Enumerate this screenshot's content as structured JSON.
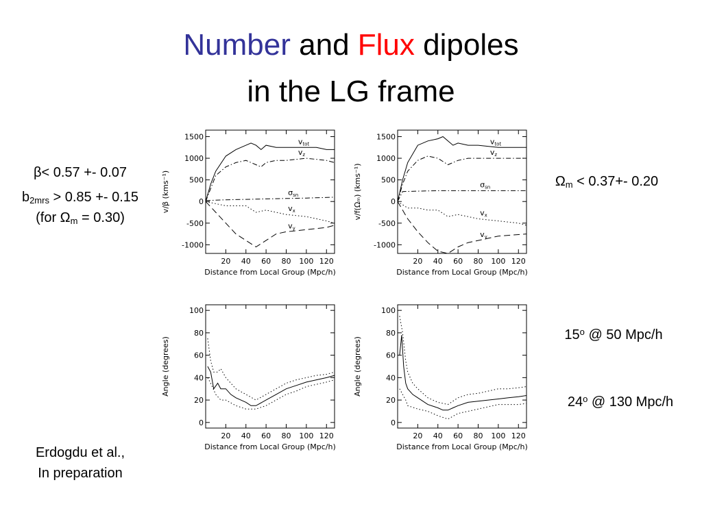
{
  "slide": {
    "title": [
      [
        {
          "t": "Number",
          "color": "#333399"
        },
        {
          "t": " and "
        },
        {
          "t": "Flux",
          "color": "#ff0000"
        },
        {
          "t": " dipoles"
        }
      ],
      [
        {
          "t": "in the LG frame"
        }
      ]
    ],
    "left_note": [
      [
        {
          "t": "β"
        },
        {
          "t": "< 0.57 +- 0.07"
        }
      ],
      [
        {
          "t": "b"
        },
        {
          "t": "2mrs",
          "sub": true
        },
        {
          "t": " > 0.85 +- 0.15"
        }
      ],
      [
        {
          "t": "(for Ω"
        },
        {
          "t": "m",
          "sub": true
        },
        {
          "t": " = 0.30)"
        }
      ]
    ],
    "right_note": [
      {
        "t": "Ω"
      },
      {
        "t": "m",
        "sub": true
      },
      {
        "t": " < 0.37+- 0.20"
      }
    ],
    "angle_notes": [
      [
        {
          "t": "15"
        },
        {
          "t": "o",
          "sup": true
        },
        {
          "t": " @ 50 Mpc/h"
        }
      ],
      [
        {
          "t": "24"
        },
        {
          "t": "o",
          "sup": true
        },
        {
          "t": " @ 130 Mpc/h"
        }
      ]
    ],
    "reference": [
      "Erdogdu et al.,",
      "In preparation"
    ]
  },
  "chart_data": [
    {
      "type": "line",
      "x_label": "Distance from Local Group (Mpc/h)",
      "y_label": "v/β (kms⁻¹)",
      "xlim": [
        0,
        128
      ],
      "xticks": [
        20,
        40,
        60,
        80,
        100,
        120
      ],
      "ylim": [
        -1200,
        1650
      ],
      "yticks": [
        -1000,
        -500,
        0,
        500,
        1000,
        1500
      ],
      "series": [
        {
          "name": "v",
          "name_sub": "tot",
          "color": "#000000",
          "style": "solid",
          "x": [
            0,
            5,
            10,
            20,
            30,
            40,
            45,
            50,
            55,
            60,
            70,
            80,
            90,
            100,
            110,
            120,
            128
          ],
          "values": [
            0,
            400,
            700,
            1050,
            1200,
            1300,
            1350,
            1300,
            1200,
            1300,
            1250,
            1250,
            1250,
            1250,
            1250,
            1200,
            1200
          ]
        },
        {
          "name": "v",
          "name_sub": "z",
          "color": "#000000",
          "style": "dashdot",
          "x": [
            0,
            5,
            10,
            20,
            30,
            40,
            50,
            55,
            60,
            70,
            80,
            100,
            120,
            128
          ],
          "values": [
            0,
            300,
            600,
            800,
            900,
            950,
            850,
            800,
            900,
            950,
            950,
            1000,
            950,
            900
          ]
        },
        {
          "name": "σ",
          "name_sub": "sn",
          "color": "#000000",
          "style": "dashdot",
          "x": [
            0,
            20,
            40,
            60,
            80,
            100,
            128
          ],
          "values": [
            20,
            40,
            50,
            60,
            70,
            80,
            100
          ]
        },
        {
          "name": "v",
          "name_sub": "x",
          "color": "#000000",
          "style": "dotted",
          "x": [
            0,
            10,
            20,
            30,
            40,
            50,
            60,
            70,
            80,
            100,
            120,
            128
          ],
          "values": [
            0,
            -50,
            -100,
            -100,
            -100,
            -250,
            -200,
            -250,
            -300,
            -350,
            -450,
            -500
          ]
        },
        {
          "name": "v",
          "name_sub": "y",
          "color": "#000000",
          "style": "dashed",
          "x": [
            0,
            10,
            20,
            30,
            40,
            50,
            60,
            70,
            80,
            100,
            120,
            128
          ],
          "values": [
            0,
            -250,
            -500,
            -750,
            -900,
            -1050,
            -900,
            -750,
            -700,
            -650,
            -600,
            -550
          ]
        }
      ]
    },
    {
      "type": "line",
      "x_label": "Distance from Local Group (Mpc/h)",
      "y_label": "v/f(Ωₘ) (kms⁻¹)",
      "xlim": [
        0,
        128
      ],
      "xticks": [
        20,
        40,
        60,
        80,
        100,
        120
      ],
      "ylim": [
        -1200,
        1650
      ],
      "yticks": [
        -1000,
        -500,
        0,
        500,
        1000,
        1500
      ],
      "series": [
        {
          "name": "v",
          "name_sub": "tot",
          "color": "#000000",
          "style": "solid",
          "x": [
            0,
            5,
            10,
            20,
            30,
            40,
            45,
            50,
            55,
            60,
            70,
            80,
            100,
            128
          ],
          "values": [
            0,
            500,
            900,
            1300,
            1400,
            1450,
            1500,
            1400,
            1300,
            1350,
            1300,
            1300,
            1250,
            1250
          ]
        },
        {
          "name": "v",
          "name_sub": "z",
          "color": "#000000",
          "style": "dashdot",
          "x": [
            0,
            5,
            10,
            20,
            30,
            40,
            50,
            60,
            70,
            80,
            100,
            128
          ],
          "values": [
            0,
            400,
            700,
            950,
            1050,
            1000,
            850,
            950,
            1000,
            1000,
            1000,
            1000
          ]
        },
        {
          "name": "σ",
          "name_sub": "sn",
          "color": "#000000",
          "style": "dashdot",
          "x": [
            0,
            5,
            20,
            40,
            60,
            80,
            100,
            128
          ],
          "values": [
            0,
            230,
            240,
            250,
            250,
            250,
            250,
            250
          ]
        },
        {
          "name": "v",
          "name_sub": "x",
          "color": "#000000",
          "style": "dotted",
          "x": [
            0,
            10,
            20,
            30,
            40,
            50,
            60,
            70,
            80,
            100,
            120,
            128
          ],
          "values": [
            0,
            -150,
            -150,
            -200,
            -200,
            -350,
            -300,
            -350,
            -400,
            -450,
            -500,
            -550
          ]
        },
        {
          "name": "v",
          "name_sub": "y",
          "color": "#000000",
          "style": "dashed",
          "x": [
            0,
            10,
            20,
            30,
            40,
            50,
            60,
            70,
            80,
            100,
            128
          ],
          "values": [
            0,
            -400,
            -700,
            -950,
            -1150,
            -1200,
            -1050,
            -950,
            -900,
            -800,
            -750
          ]
        }
      ]
    },
    {
      "type": "line",
      "x_label": "Distance from Local Group (Mpc/h)",
      "y_label": "Angle (degrees)",
      "xlim": [
        0,
        128
      ],
      "xticks": [
        20,
        40,
        60,
        80,
        100,
        120
      ],
      "ylim": [
        -5,
        105
      ],
      "yticks": [
        0,
        20,
        40,
        60,
        80,
        100
      ],
      "series": [
        {
          "color": "#000000",
          "style": "solid",
          "x": [
            2,
            5,
            8,
            12,
            15,
            20,
            25,
            30,
            40,
            45,
            50,
            60,
            70,
            80,
            90,
            100,
            110,
            120,
            128
          ],
          "values": [
            50,
            45,
            30,
            35,
            30,
            30,
            25,
            22,
            18,
            15,
            15,
            20,
            25,
            30,
            33,
            36,
            38,
            40,
            42
          ]
        },
        {
          "color": "#000000",
          "style": "dotted",
          "x": [
            2,
            5,
            8,
            12,
            15,
            20,
            30,
            40,
            50,
            60,
            70,
            80,
            90,
            100,
            110,
            120,
            128
          ],
          "values": [
            75,
            55,
            45,
            45,
            48,
            40,
            30,
            25,
            20,
            25,
            30,
            35,
            38,
            40,
            42,
            43,
            45
          ]
        },
        {
          "color": "#000000",
          "style": "dotted",
          "x": [
            2,
            5,
            10,
            15,
            20,
            30,
            40,
            50,
            60,
            70,
            80,
            90,
            100,
            110,
            120,
            128
          ],
          "values": [
            40,
            35,
            25,
            20,
            20,
            15,
            12,
            12,
            15,
            20,
            25,
            28,
            32,
            34,
            36,
            38
          ]
        }
      ]
    },
    {
      "type": "line",
      "x_label": "Distance from Local Group (Mpc/h)",
      "y_label": "Angle (degrees)",
      "xlim": [
        0,
        128
      ],
      "xticks": [
        20,
        40,
        60,
        80,
        100,
        120
      ],
      "ylim": [
        -5,
        105
      ],
      "yticks": [
        0,
        20,
        40,
        60,
        80,
        100
      ],
      "series": [
        {
          "color": "#000000",
          "style": "solid",
          "x": [
            2,
            4,
            6,
            8,
            10,
            15,
            20,
            30,
            40,
            45,
            50,
            55,
            60,
            70,
            80,
            90,
            100,
            110,
            120,
            128
          ],
          "values": [
            60,
            78,
            50,
            35,
            30,
            25,
            22,
            16,
            13,
            11,
            11,
            13,
            15,
            18,
            19,
            20,
            21,
            22,
            23,
            24
          ]
        },
        {
          "color": "#000000",
          "style": "dotted",
          "x": [
            2,
            5,
            8,
            10,
            15,
            20,
            30,
            40,
            50,
            60,
            70,
            80,
            90,
            100,
            110,
            120,
            128
          ],
          "values": [
            95,
            80,
            55,
            45,
            35,
            30,
            22,
            18,
            16,
            22,
            25,
            26,
            28,
            30,
            30,
            31,
            32
          ]
        },
        {
          "color": "#000000",
          "style": "dotted",
          "x": [
            2,
            5,
            8,
            10,
            20,
            30,
            40,
            50,
            60,
            70,
            80,
            90,
            100,
            110,
            120,
            128
          ],
          "values": [
            30,
            25,
            20,
            15,
            12,
            10,
            6,
            3,
            8,
            10,
            12,
            14,
            16,
            16,
            16,
            17
          ]
        }
      ]
    }
  ]
}
